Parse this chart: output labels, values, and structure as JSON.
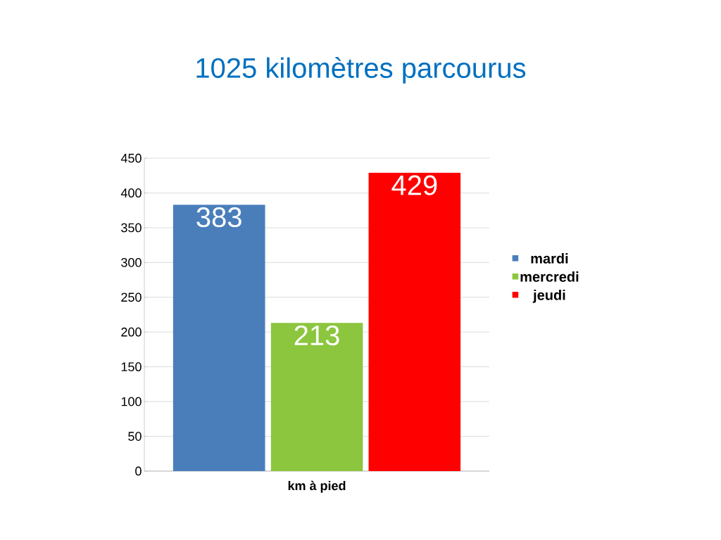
{
  "chart_data": {
    "type": "bar",
    "title": "1025 kilomètres parcourus",
    "categories": [
      "km à pied"
    ],
    "series": [
      {
        "name": "mardi",
        "color": "#4a7ebb",
        "values": [
          383
        ]
      },
      {
        "name": "mercredi",
        "color": "#8cc63f",
        "values": [
          213
        ]
      },
      {
        "name": "jeudi",
        "color": "#ff0000",
        "values": [
          429
        ]
      }
    ],
    "ylim": [
      0,
      450
    ],
    "yticks": [
      0,
      50,
      100,
      150,
      200,
      250,
      300,
      350,
      400,
      450
    ],
    "grid": "y",
    "legend": "right",
    "data_labels": true
  }
}
